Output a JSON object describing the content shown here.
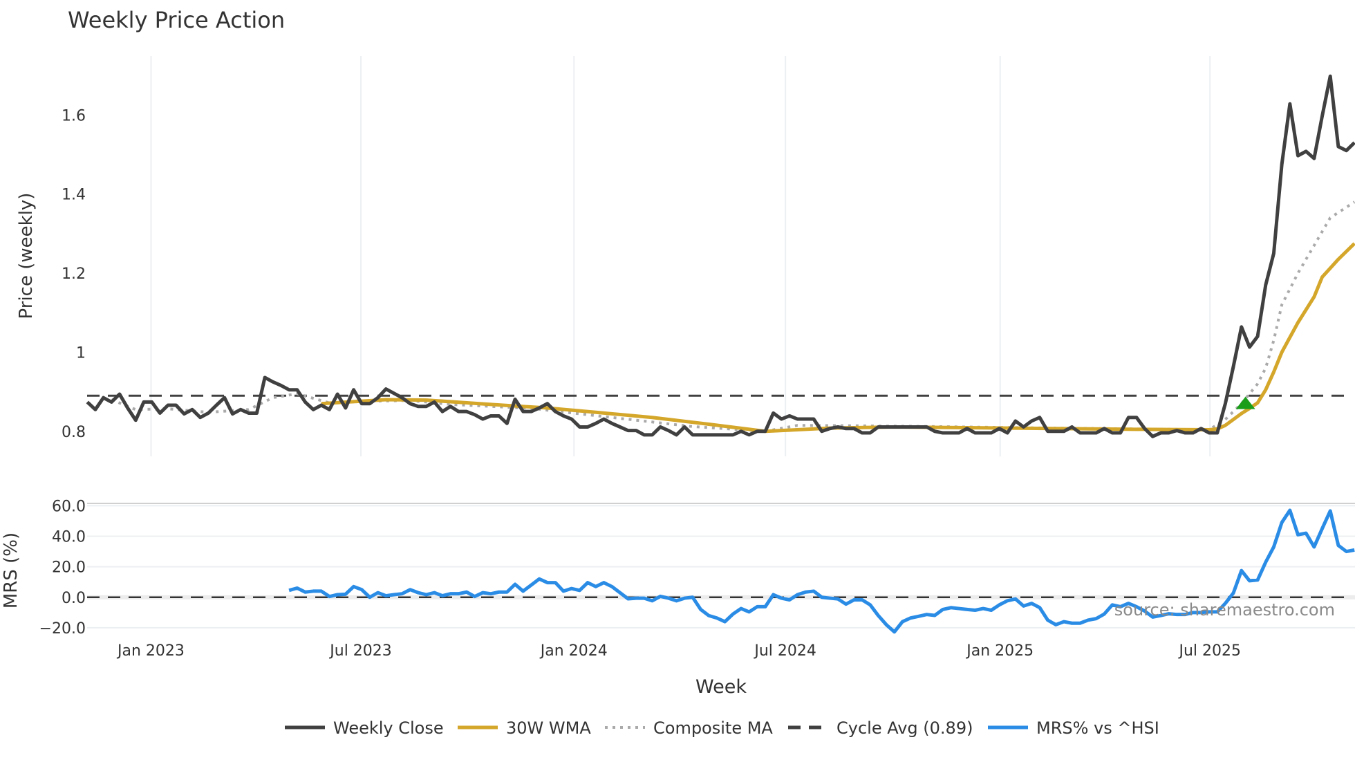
{
  "chart_data": [
    {
      "type": "line",
      "title": "Weekly Price Action",
      "xlabel": "Week",
      "ylabel": "Price (weekly)",
      "ylim": [
        0.76,
        1.75
      ],
      "x_unit": "week index (weekly bars, Nov 2022 onward)",
      "x_ticks": [
        {
          "x": 7.9,
          "label": "Jan 2023"
        },
        {
          "x": 33.9,
          "label": "Jul 2023"
        },
        {
          "x": 60.3,
          "label": "Jan 2024"
        },
        {
          "x": 86.5,
          "label": "Jul 2024"
        },
        {
          "x": 113.1,
          "label": "Jan 2025"
        },
        {
          "x": 139.1,
          "label": "Jul 2025"
        }
      ],
      "y_ticks": [
        {
          "v": 0.8,
          "label": "0.8"
        },
        {
          "v": 1.0,
          "label": "1"
        },
        {
          "v": 1.2,
          "label": "1.2"
        },
        {
          "v": 1.4,
          "label": "1.4"
        },
        {
          "v": 1.6,
          "label": "1.6"
        }
      ],
      "grid": "vertical",
      "series": [
        {
          "name": "Weekly Close",
          "color": "#404040",
          "style": "solid",
          "start": 0,
          "values": [
            0.874,
            0.855,
            0.885,
            0.874,
            0.894,
            0.859,
            0.828,
            0.874,
            0.874,
            0.846,
            0.866,
            0.866,
            0.844,
            0.855,
            0.835,
            0.846,
            0.866,
            0.885,
            0.844,
            0.855,
            0.846,
            0.846,
            0.936,
            0.925,
            0.916,
            0.905,
            0.905,
            0.874,
            0.855,
            0.866,
            0.855,
            0.894,
            0.859,
            0.905,
            0.87,
            0.87,
            0.885,
            0.907,
            0.896,
            0.885,
            0.87,
            0.863,
            0.863,
            0.874,
            0.85,
            0.863,
            0.85,
            0.85,
            0.842,
            0.831,
            0.839,
            0.839,
            0.82,
            0.881,
            0.85,
            0.85,
            0.859,
            0.87,
            0.85,
            0.839,
            0.831,
            0.811,
            0.811,
            0.82,
            0.831,
            0.82,
            0.811,
            0.802,
            0.802,
            0.791,
            0.791,
            0.811,
            0.802,
            0.791,
            0.811,
            0.791,
            0.791,
            0.791,
            0.791,
            0.791,
            0.791,
            0.8,
            0.791,
            0.8,
            0.8,
            0.846,
            0.831,
            0.839,
            0.831,
            0.831,
            0.831,
            0.8,
            0.807,
            0.811,
            0.807,
            0.807,
            0.796,
            0.796,
            0.811,
            0.811,
            0.811,
            0.811,
            0.811,
            0.811,
            0.811,
            0.8,
            0.796,
            0.796,
            0.796,
            0.807,
            0.796,
            0.796,
            0.796,
            0.807,
            0.796,
            0.826,
            0.811,
            0.826,
            0.835,
            0.8,
            0.8,
            0.8,
            0.811,
            0.796,
            0.796,
            0.796,
            0.807,
            0.796,
            0.796,
            0.835,
            0.835,
            0.807,
            0.787,
            0.796,
            0.796,
            0.802,
            0.796,
            0.796,
            0.807,
            0.796,
            0.796,
            0.87,
            0.964,
            1.064,
            1.013,
            1.04,
            1.17,
            1.25,
            1.475,
            1.628,
            1.497,
            1.508,
            1.49,
            1.597,
            1.698,
            1.52,
            1.51,
            1.53
          ]
        },
        {
          "name": "30W WMA",
          "color": "#d4a62a",
          "style": "solid",
          "points": [
            [
              29,
              0.87
            ],
            [
              33,
              0.875
            ],
            [
              37,
              0.88
            ],
            [
              42,
              0.879
            ],
            [
              50,
              0.868
            ],
            [
              57,
              0.859
            ],
            [
              63,
              0.848
            ],
            [
              70,
              0.835
            ],
            [
              77,
              0.818
            ],
            [
              84,
              0.8
            ],
            [
              92,
              0.808
            ],
            [
              100,
              0.811
            ],
            [
              110,
              0.809
            ],
            [
              120,
              0.807
            ],
            [
              130,
              0.805
            ],
            [
              139,
              0.804
            ],
            [
              140,
              0.806
            ],
            [
              141,
              0.815
            ],
            [
              142,
              0.83
            ],
            [
              143,
              0.845
            ],
            [
              144,
              0.858
            ],
            [
              145,
              0.872
            ],
            [
              146,
              0.905
            ],
            [
              147,
              0.95
            ],
            [
              148,
              1.0
            ],
            [
              150,
              1.075
            ],
            [
              152,
              1.14
            ],
            [
              153,
              1.19
            ],
            [
              155,
              1.235
            ],
            [
              157,
              1.275
            ]
          ]
        },
        {
          "name": "Composite MA",
          "color": "#aaaaaa",
          "style": "dotted",
          "points": [
            [
              3,
              0.88
            ],
            [
              6,
              0.855
            ],
            [
              10,
              0.857
            ],
            [
              15,
              0.848
            ],
            [
              20,
              0.855
            ],
            [
              23,
              0.885
            ],
            [
              26,
              0.895
            ],
            [
              30,
              0.872
            ],
            [
              35,
              0.876
            ],
            [
              40,
              0.878
            ],
            [
              45,
              0.868
            ],
            [
              55,
              0.858
            ],
            [
              65,
              0.835
            ],
            [
              75,
              0.812
            ],
            [
              84,
              0.8
            ],
            [
              88,
              0.815
            ],
            [
              95,
              0.814
            ],
            [
              105,
              0.812
            ],
            [
              120,
              0.808
            ],
            [
              130,
              0.806
            ],
            [
              139,
              0.804
            ],
            [
              141,
              0.83
            ],
            [
              143,
              0.87
            ],
            [
              145,
              0.92
            ],
            [
              146,
              0.96
            ],
            [
              147,
              1.03
            ],
            [
              148,
              1.12
            ],
            [
              150,
              1.2
            ],
            [
              152,
              1.27
            ],
            [
              154,
              1.34
            ],
            [
              157,
              1.38
            ]
          ]
        },
        {
          "name": "Cycle Avg (0.89)",
          "color": "#404040",
          "style": "dashed",
          "constant": 0.89
        }
      ],
      "markers": [
        {
          "type": "triangle-up",
          "x": 143.5,
          "y": 0.872,
          "color": "#1a9e1a"
        }
      ]
    },
    {
      "type": "line",
      "ylabel": "MRS (%)",
      "ylim": [
        -25,
        62
      ],
      "y_ticks": [
        {
          "v": 60,
          "label": "60.0"
        },
        {
          "v": 40,
          "label": "40.0"
        },
        {
          "v": 20,
          "label": "20.0"
        },
        {
          "v": 0,
          "label": "0.0"
        },
        {
          "v": -20,
          "label": "−20.0"
        }
      ],
      "grid": "horizontal",
      "reference_line": 0,
      "series": [
        {
          "name": "MRS% vs ^HSI",
          "color": "#2b8ce6",
          "style": "solid",
          "start": 25,
          "values": [
            4.5,
            6,
            3.4,
            4,
            4,
            0.5,
            1.7,
            2,
            7,
            5,
            0,
            3,
            1,
            1.7,
            2.3,
            5,
            3,
            1.7,
            3,
            1,
            2.3,
            2.3,
            3.4,
            0.5,
            3,
            2.3,
            3.4,
            3.4,
            8.5,
            4,
            8,
            12,
            9.6,
            9.6,
            4,
            5.7,
            4.5,
            9.6,
            7,
            9.6,
            7,
            3,
            -1,
            -0.6,
            -0.6,
            -2.3,
            0.6,
            -0.6,
            -2.3,
            -0.6,
            0,
            -8,
            -12,
            -13.6,
            -16,
            -11,
            -7.4,
            -9.6,
            -6.2,
            -6.2,
            1.7,
            -0.6,
            -1.7,
            1.7,
            3.4,
            4,
            0,
            -0.6,
            -1.1,
            -4.5,
            -1.7,
            -1.7,
            -5,
            -12,
            -18,
            -22.7,
            -16,
            -13.6,
            -12.5,
            -11.3,
            -11.9,
            -8,
            -6.8,
            -7.4,
            -8,
            -8.5,
            -7.4,
            -8.5,
            -5,
            -2.3,
            -1.1,
            -5.7,
            -4,
            -6.8,
            -15,
            -18,
            -16,
            -17,
            -17,
            -15,
            -14,
            -11,
            -5,
            -6.2,
            -4,
            -6.2,
            -9,
            -13,
            -12,
            -10.8,
            -11.3,
            -11.3,
            -10,
            -10,
            -9.6,
            -9.6,
            -4,
            2.8,
            17.5,
            10.8,
            11.3,
            23,
            33,
            49,
            57,
            41,
            42,
            33,
            45,
            56.6,
            34,
            30,
            31
          ]
        }
      ]
    }
  ],
  "title": "Weekly Price Action",
  "xlabel": "Week",
  "price_ylabel": "Price (weekly)",
  "mrs_ylabel": "MRS (%)",
  "source": "source: sharemaestro.com",
  "legend": [
    {
      "label": "Weekly Close",
      "color": "#404040",
      "style": "solid"
    },
    {
      "label": "30W WMA",
      "color": "#d4a62a",
      "style": "solid"
    },
    {
      "label": "Composite MA",
      "color": "#aaaaaa",
      "style": "dotted"
    },
    {
      "label": "Cycle Avg (0.89)",
      "color": "#404040",
      "style": "dashed"
    },
    {
      "label": "MRS% vs ^HSI",
      "color": "#2b8ce6",
      "style": "solid"
    }
  ]
}
